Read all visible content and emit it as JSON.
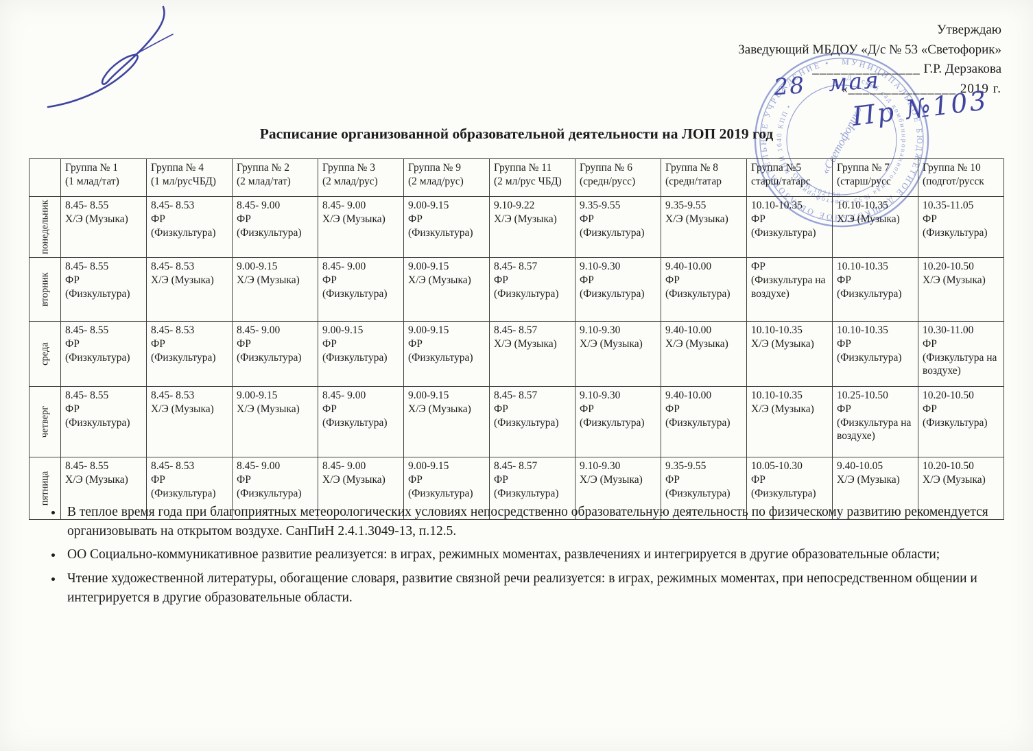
{
  "colors": {
    "ink_blue": "#3f44a0",
    "stamp_blue": "#5b6ec1",
    "paper": "#fcfcf9",
    "text": "#1c1c1c"
  },
  "approval": {
    "line1": "Утверждаю",
    "line2": "Заведующий МБДОУ «Д/с № 53 «Светофорик»",
    "sign_blank": "_______________",
    "name": "Г.Р. Дерзакова",
    "date_line": "«_______________ 2019 г.",
    "handwritten_day": "28",
    "handwritten_month": "мая",
    "handwritten_order": "Пр №103"
  },
  "title": "Расписание организованной образовательной деятельности на ЛОП 2019 год",
  "stamp": {
    "ring_outer": "МУНИЦИПАЛЬНОЕ БЮДЖЕТНОЕ ДОШКОЛЬНОЕ ОБРАЗОВАТЕЛЬНОЕ УЧРЕЖДЕНИЕ •",
    "ring_inner": "«Детский сад комбинированного вида №53 «Светофорик» • ИНН 1640 КПП •",
    "ring_bottom": "ОГРН 102160",
    "center": "«Светофорик»"
  },
  "table": {
    "columns": [
      {
        "title": "Группа № 1",
        "subtitle": "(1 млад/тат)"
      },
      {
        "title": "Группа № 4",
        "subtitle": "(1 мл/русЧБД)"
      },
      {
        "title": "Группа № 2",
        "subtitle": "(2 млад/тат)"
      },
      {
        "title": "Группа № 3",
        "subtitle": "(2 млад/рус)"
      },
      {
        "title": "Группа № 9",
        "subtitle": "(2 млад/рус)"
      },
      {
        "title": "Группа № 11",
        "subtitle": "(2 мл/рус ЧБД)"
      },
      {
        "title": "Группа № 6",
        "subtitle": "(средн/русс)"
      },
      {
        "title": "Группа № 8",
        "subtitle": "(средн/татар"
      },
      {
        "title": "Группа №5",
        "subtitle": "старш/татарс"
      },
      {
        "title": "Группа № 7",
        "subtitle": "(старш/русс"
      },
      {
        "title": "Группа № 10",
        "subtitle": "(подгот/русск"
      }
    ],
    "rows": [
      {
        "day": "понедельник",
        "cells": [
          [
            "8.45- 8.55",
            "Х/Э (Музыка)"
          ],
          [
            "8.45- 8.53",
            "ФР (Физкультура)"
          ],
          [
            "8.45- 9.00",
            "ФР (Физкультура)"
          ],
          [
            "8.45- 9.00",
            "Х/Э (Музыка)"
          ],
          [
            "9.00-9.15",
            "ФР (Физкультура)"
          ],
          [
            "9.10-9.22",
            "Х/Э (Музыка)"
          ],
          [
            "9.35-9.55",
            "ФР (Физкультура)"
          ],
          [
            "9.35-9.55",
            "Х/Э (Музыка)"
          ],
          [
            "10.10-10.35",
            "ФР (Физкультура)"
          ],
          [
            "10.10-10.35",
            "Х/Э (Музыка)"
          ],
          [
            "10.35-11.05",
            "ФР (Физкультура)"
          ]
        ]
      },
      {
        "day": "вторник",
        "cells": [
          [
            "8.45- 8.55",
            "ФР (Физкультура)"
          ],
          [
            "8.45- 8.53",
            "Х/Э (Музыка)"
          ],
          [
            "9.00-9.15",
            "Х/Э (Музыка)"
          ],
          [
            "8.45- 9.00",
            "ФР (Физкультура)"
          ],
          [
            "9.00-9.15",
            "Х/Э (Музыка)"
          ],
          [
            "8.45- 8.57",
            "ФР (Физкультура)"
          ],
          [
            "9.10-9.30",
            "ФР (Физкультура)"
          ],
          [
            "9.40-10.00",
            "ФР (Физкультура)"
          ],
          [
            "",
            "ФР (Физкультура на воздухе)"
          ],
          [
            "10.10-10.35",
            "ФР (Физкультура)"
          ],
          [
            "10.20-10.50",
            "Х/Э (Музыка)"
          ]
        ]
      },
      {
        "day": "среда",
        "cells": [
          [
            "8.45- 8.55",
            "ФР (Физкультура)"
          ],
          [
            "8.45- 8.53",
            "ФР (Физкультура)"
          ],
          [
            "8.45- 9.00",
            "ФР (Физкультура)"
          ],
          [
            "9.00-9.15",
            "ФР (Физкультура)"
          ],
          [
            "9.00-9.15",
            "ФР (Физкультура)"
          ],
          [
            "8.45- 8.57",
            "Х/Э (Музыка)"
          ],
          [
            "9.10-9.30",
            "Х/Э (Музыка)"
          ],
          [
            "9.40-10.00",
            "Х/Э (Музыка)"
          ],
          [
            "10.10-10.35",
            "Х/Э (Музыка)"
          ],
          [
            "10.10-10.35",
            "ФР (Физкультура)"
          ],
          [
            "10.30-11.00",
            "ФР (Физкультура на воздухе)"
          ]
        ]
      },
      {
        "day": "четверг",
        "cells": [
          [
            "8.45- 8.55",
            "ФР (Физкультура)"
          ],
          [
            "8.45- 8.53",
            "Х/Э (Музыка)"
          ],
          [
            "9.00-9.15",
            "Х/Э (Музыка)"
          ],
          [
            "8.45- 9.00",
            "ФР (Физкультура)"
          ],
          [
            "9.00-9.15",
            "Х/Э (Музыка)"
          ],
          [
            "8.45- 8.57",
            "ФР (Физкультура)"
          ],
          [
            "9.10-9.30",
            "ФР (Физкультура)"
          ],
          [
            "9.40-10.00",
            "ФР (Физкультура)"
          ],
          [
            "10.10-10.35",
            "Х/Э (Музыка)"
          ],
          [
            "10.25-10.50",
            "ФР (Физкультура на воздухе)"
          ],
          [
            "10.20-10.50",
            "ФР (Физкультура)"
          ]
        ]
      },
      {
        "day": "пятница",
        "cells": [
          [
            "8.45- 8.55",
            "Х/Э (Музыка)"
          ],
          [
            "8.45- 8.53",
            "ФР (Физкультура)"
          ],
          [
            "8.45- 9.00",
            "ФР (Физкультура)"
          ],
          [
            "8.45- 9.00",
            "Х/Э (Музыка)"
          ],
          [
            "9.00-9.15",
            "ФР (Физкультура)"
          ],
          [
            "8.45- 8.57",
            "ФР (Физкультура)"
          ],
          [
            "9.10-9.30",
            "Х/Э (Музыка)"
          ],
          [
            "9.35-9.55",
            "ФР (Физкультура)"
          ],
          [
            "10.05-10.30",
            "ФР (Физкультура)"
          ],
          [
            "9.40-10.05",
            "Х/Э (Музыка)"
          ],
          [
            "10.20-10.50",
            "Х/Э (Музыка)"
          ]
        ]
      }
    ]
  },
  "notes": [
    "В теплое время года при благоприятных метеорологических условиях непосредственно образовательную деятельность по физическому развитию рекомендуется организовывать на открытом воздухе. СанПиН 2.4.1.3049-13, п.12.5.",
    "ОО Социально-коммуникативное развитие реализуется: в играх, режимных моментах, развлечениях и интегрируется в другие образовательные области;",
    "Чтение художественной литературы, обогащение словаря, развитие связной речи реализуется: в играх, режимных моментах, при непосредственном общении и интегрируется в другие образовательные области."
  ]
}
